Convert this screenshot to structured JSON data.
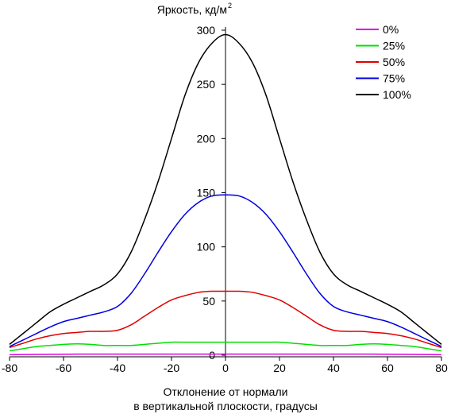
{
  "chart_data": {
    "type": "line",
    "title": "",
    "ylabel": "Яркость, кд/м",
    "ylabel_superscript": "2",
    "xlabel_line1": "Отклонение от нормали",
    "xlabel_line2": "в вертикальной плоскости, градусы",
    "xlim": [
      -80,
      80
    ],
    "ylim": [
      0,
      300
    ],
    "x_ticks": [
      "-80",
      "-60",
      "-40",
      "-20",
      "0",
      "20",
      "40",
      "60",
      "80"
    ],
    "y_ticks": [
      "0",
      "50",
      "100",
      "150",
      "200",
      "250",
      "300"
    ],
    "grid": false,
    "legend_position": "top-right",
    "x": [
      -80,
      -75,
      -70,
      -65,
      -60,
      -55,
      -50,
      -45,
      -40,
      -35,
      -30,
      -25,
      -20,
      -15,
      -10,
      -5,
      0,
      5,
      10,
      15,
      20,
      25,
      30,
      35,
      40,
      45,
      50,
      55,
      60,
      65,
      70,
      75,
      80
    ],
    "series": [
      {
        "name": "0%",
        "color": "#e000e0",
        "values": [
          0.5,
          0.6,
          0.7,
          0.8,
          0.9,
          1.0,
          1.0,
          1.0,
          1.0,
          1.0,
          1.0,
          1.0,
          1.0,
          1.0,
          1.0,
          1.0,
          1.0,
          1.0,
          1.0,
          1.0,
          1.0,
          1.0,
          1.0,
          1.0,
          1.0,
          1.0,
          1.0,
          1.0,
          0.9,
          0.8,
          0.7,
          0.6,
          0.5
        ]
      },
      {
        "name": "25%",
        "color": "#00e000",
        "values": [
          4,
          6,
          8,
          9,
          10,
          10.5,
          10,
          9,
          9,
          9,
          10,
          11,
          12,
          12,
          12,
          12,
          12,
          12,
          12,
          12,
          12,
          11,
          10,
          9,
          9,
          9,
          10,
          10.5,
          10,
          9,
          8,
          6,
          4
        ]
      },
      {
        "name": "50%",
        "color": "#e00000",
        "values": [
          7,
          11,
          15,
          18,
          20,
          21,
          22,
          22,
          23,
          28,
          36,
          44,
          51,
          55,
          58,
          59,
          59,
          59,
          58,
          55,
          51,
          44,
          36,
          28,
          23,
          22,
          22,
          21,
          20,
          18,
          15,
          11,
          7
        ]
      },
      {
        "name": "75%",
        "color": "#0000e0",
        "values": [
          8,
          14,
          20,
          26,
          31,
          34,
          37,
          40,
          45,
          57,
          75,
          95,
          114,
          130,
          141,
          147,
          148,
          147,
          141,
          130,
          114,
          95,
          75,
          57,
          45,
          40,
          37,
          34,
          31,
          26,
          20,
          14,
          8
        ]
      },
      {
        "name": "100%",
        "color": "#000000",
        "values": [
          10,
          20,
          30,
          40,
          47,
          53,
          59,
          65,
          75,
          95,
          125,
          160,
          200,
          240,
          270,
          288,
          296,
          288,
          270,
          240,
          200,
          160,
          125,
          95,
          75,
          65,
          59,
          53,
          47,
          40,
          30,
          20,
          10
        ]
      }
    ]
  }
}
